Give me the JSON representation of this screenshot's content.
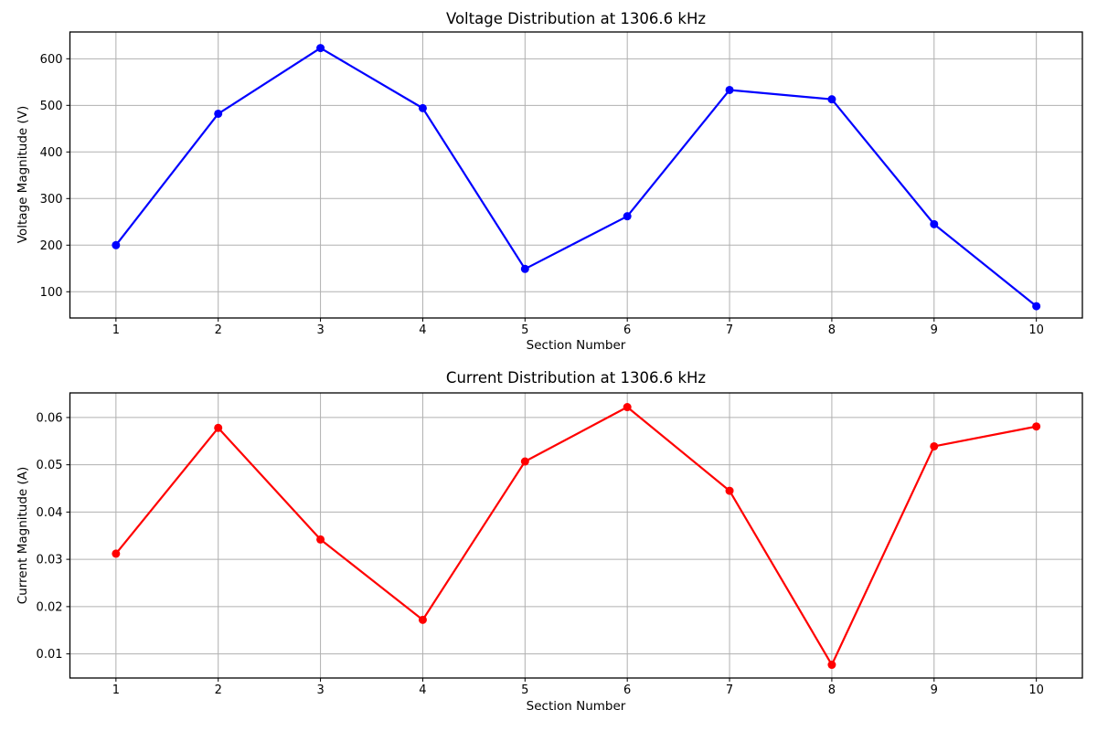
{
  "figure": {
    "background": "#ffffff",
    "grid_color": "#b0b0b0",
    "spine_color": "#000000",
    "text_color": "#000000"
  },
  "chart_data": [
    {
      "type": "line",
      "name": "voltage",
      "title": "Voltage Distribution at 1306.6 kHz",
      "xlabel": "Section Number",
      "ylabel": "Voltage Magnitude (V)",
      "legend": "none",
      "grid": true,
      "line_color": "#0000ff",
      "marker": "circle",
      "x": [
        1,
        2,
        3,
        4,
        5,
        6,
        7,
        8,
        9,
        10
      ],
      "values": [
        200,
        482,
        623,
        494,
        149,
        262,
        533,
        513,
        245,
        69
      ],
      "xlim": [
        0.55,
        10.45
      ],
      "ylim": [
        43.7,
        657.5
      ],
      "xticks": [
        1,
        2,
        3,
        4,
        5,
        6,
        7,
        8,
        9,
        10
      ],
      "xtick_labels": [
        "1",
        "2",
        "3",
        "4",
        "5",
        "6",
        "7",
        "8",
        "9",
        "10"
      ],
      "yticks": [
        100,
        200,
        300,
        400,
        500,
        600
      ],
      "ytick_labels": [
        "100",
        "200",
        "300",
        "400",
        "500",
        "600"
      ]
    },
    {
      "type": "line",
      "name": "current",
      "title": "Current Distribution at 1306.6 kHz",
      "xlabel": "Section Number",
      "ylabel": "Current Magnitude (A)",
      "legend": "none",
      "grid": true,
      "line_color": "#ff0000",
      "marker": "circle",
      "x": [
        1,
        2,
        3,
        4,
        5,
        6,
        7,
        8,
        9,
        10
      ],
      "values": [
        0.0312,
        0.0578,
        0.0342,
        0.0172,
        0.0507,
        0.0622,
        0.0445,
        0.0077,
        0.0539,
        0.0581
      ],
      "xlim": [
        0.55,
        10.45
      ],
      "ylim": [
        0.0049,
        0.0652
      ],
      "xticks": [
        1,
        2,
        3,
        4,
        5,
        6,
        7,
        8,
        9,
        10
      ],
      "xtick_labels": [
        "1",
        "2",
        "3",
        "4",
        "5",
        "6",
        "7",
        "8",
        "9",
        "10"
      ],
      "yticks": [
        0.01,
        0.02,
        0.03,
        0.04,
        0.05,
        0.06
      ],
      "ytick_labels": [
        "0.01",
        "0.02",
        "0.03",
        "0.04",
        "0.05",
        "0.06"
      ]
    }
  ]
}
